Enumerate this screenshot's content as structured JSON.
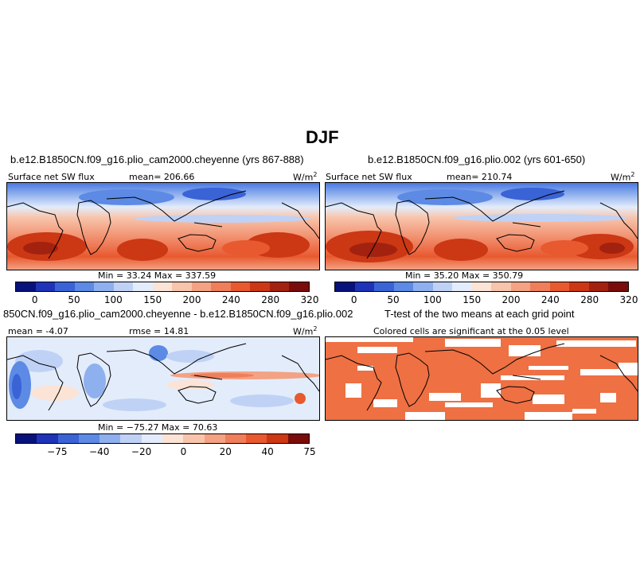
{
  "page_title": "DJF",
  "palettes": {
    "field": [
      "#08127a",
      "#1f33b8",
      "#3a63d6",
      "#5c8ae4",
      "#8fb0ee",
      "#bfd2f6",
      "#e3ecfb",
      "#fbe3d6",
      "#f8c4ac",
      "#f3a283",
      "#ef7e5b",
      "#e8592f",
      "#cc3714",
      "#a3210f",
      "#7a0c0c"
    ],
    "diff": [
      "#08127a",
      "#1f33b8",
      "#3a63d6",
      "#5c8ae4",
      "#8fb0ee",
      "#bfd2f6",
      "#e3ecfb",
      "#fbe3d6",
      "#f8c4ac",
      "#f3a283",
      "#ef7e5b",
      "#e8592f",
      "#cc3714",
      "#7a0c0c"
    ],
    "signif": "#ee7043",
    "coast": "#000000"
  },
  "panels": {
    "tl": {
      "case_title": "b.e12.B1850CN.f09_g16.plio_cam2000.cheyenne (yrs 867-888)",
      "left_label": "Surface net SW flux",
      "center_label": "mean= 206.66",
      "units_base": "W/m",
      "units_sup": "2",
      "minmax": "Min = 33.24 Max = 337.59",
      "ticks": [
        "0",
        "50",
        "100",
        "150",
        "200",
        "240",
        "280",
        "320"
      ]
    },
    "tr": {
      "case_title": "b.e12.B1850CN.f09_g16.plio.002 (yrs 601-650)",
      "left_label": "Surface net SW flux",
      "center_label": "mean= 210.74",
      "units_base": "W/m",
      "units_sup": "2",
      "minmax": "Min = 35.20 Max = 350.79",
      "ticks": [
        "0",
        "50",
        "100",
        "150",
        "200",
        "240",
        "280",
        "320"
      ]
    },
    "bl": {
      "case_title": "850CN.f09_g16.plio_cam2000.cheyenne - b.e12.B1850CN.f09_g16.plio.002",
      "left_label": "mean = -4.07",
      "center_label": "rmse = 14.81",
      "units_base": "W/m",
      "units_sup": "2",
      "minmax": "Min = −75.27 Max = 70.63",
      "ticks": [
        "−75",
        "−40",
        "−20",
        "0",
        "20",
        "40",
        "75"
      ]
    },
    "br": {
      "case_title": "T-test of the two means at each grid point",
      "center_label": "Colored cells are significant at the 0.05 level"
    }
  },
  "chart_data": [
    {
      "type": "heatmap",
      "title": "b.e12.B1850CN.f09_g16.plio_cam2000.cheyenne (yrs 867-888)",
      "variable": "Surface net SW flux",
      "units": "W/m^2",
      "mean": 206.66,
      "min": 33.24,
      "max": 337.59,
      "contour_levels": [
        0,
        50,
        100,
        150,
        200,
        240,
        280,
        320
      ],
      "season": "DJF"
    },
    {
      "type": "heatmap",
      "title": "b.e12.B1850CN.f09_g16.plio.002 (yrs 601-650)",
      "variable": "Surface net SW flux",
      "units": "W/m^2",
      "mean": 210.74,
      "min": 35.2,
      "max": 350.79,
      "contour_levels": [
        0,
        50,
        100,
        150,
        200,
        240,
        280,
        320
      ],
      "season": "DJF"
    },
    {
      "type": "heatmap",
      "title": "850CN.f09_g16.plio_cam2000.cheyenne - b.e12.B1850CN.f09_g16.plio.002",
      "units": "W/m^2",
      "mean": -4.07,
      "rmse": 14.81,
      "min": -75.27,
      "max": 70.63,
      "contour_levels": [
        -75,
        -40,
        -20,
        0,
        20,
        40,
        75
      ]
    },
    {
      "type": "heatmap",
      "title": "T-test of the two means at each grid point",
      "note": "Colored cells are significant at the 0.05 level",
      "significance_level": 0.05
    }
  ]
}
